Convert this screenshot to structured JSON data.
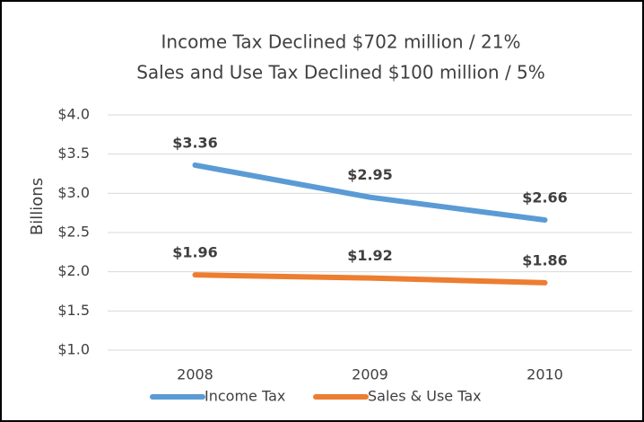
{
  "chart_data": {
    "type": "line",
    "title": [
      "Income Tax Declined $702 million / 21%",
      "Sales and Use Tax Declined $100 million / 5%"
    ],
    "ylabel": "Billions",
    "categories": [
      "2008",
      "2009",
      "2010"
    ],
    "series": [
      {
        "name": "Income Tax",
        "color": "#5b9bd5",
        "values": [
          3.36,
          2.95,
          2.66
        ],
        "value_labels": [
          "$3.36",
          "$2.95",
          "$2.66"
        ]
      },
      {
        "name": "Sales & Use Tax",
        "color": "#ed7d31",
        "values": [
          1.96,
          1.92,
          1.86
        ],
        "value_labels": [
          "$1.96",
          "$1.92",
          "$1.86"
        ]
      }
    ],
    "ylim": [
      1,
      4
    ],
    "yticks": [
      {
        "value": 1,
        "label": "$1.0"
      },
      {
        "value": 1.5,
        "label": "$1.5"
      },
      {
        "value": 2,
        "label": "$2.0"
      },
      {
        "value": 2.5,
        "label": "$2.5"
      },
      {
        "value": 3,
        "label": "$3.0"
      },
      {
        "value": 3.5,
        "label": "$3.5"
      },
      {
        "value": 4,
        "label": "$4.0"
      }
    ],
    "grid": true,
    "legend": "bottom"
  }
}
